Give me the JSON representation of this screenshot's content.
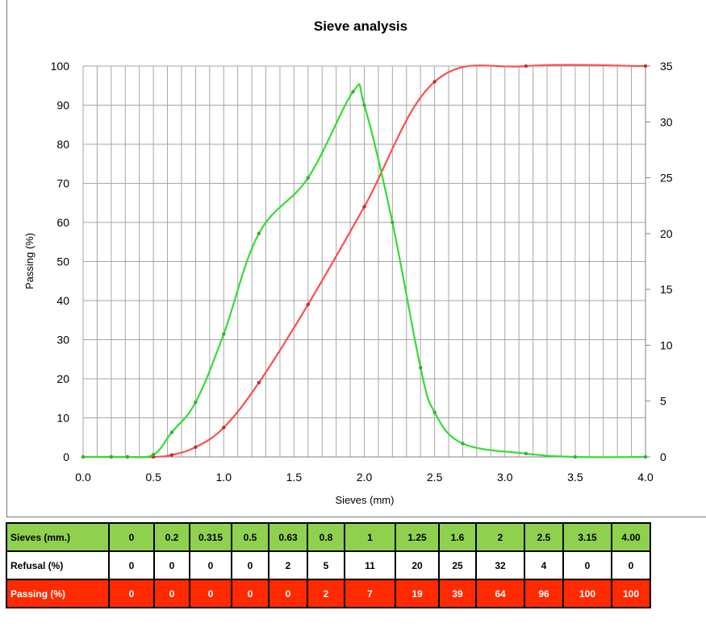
{
  "chart_data": {
    "type": "line",
    "title": "Sieve analysis",
    "xlabel": "Sieves (mm)",
    "ylabel": "Passing (%)",
    "xlim": [
      0,
      4
    ],
    "ylim": [
      0,
      100
    ],
    "y2lim": [
      0,
      35
    ],
    "x_ticks": [
      "0.0",
      "0.5",
      "1.0",
      "1.5",
      "2.0",
      "2.5",
      "3.0",
      "3.5",
      "4.0"
    ],
    "y_ticks": [
      "0",
      "10",
      "20",
      "30",
      "40",
      "50",
      "60",
      "70",
      "80",
      "90",
      "100"
    ],
    "y2_ticks": [
      "0",
      "5",
      "10",
      "15",
      "20",
      "25",
      "30",
      "35"
    ],
    "grid": true,
    "series": [
      {
        "axis": "left",
        "color": "#ff4d4d",
        "x": [
          0,
          0.2,
          0.315,
          0.5,
          0.63,
          0.8,
          1,
          1.25,
          1.6,
          2,
          2.5,
          3.15,
          4.0
        ],
        "y": [
          0,
          0,
          0,
          0,
          0.5,
          2.5,
          7.5,
          19,
          39,
          64,
          96,
          100,
          100
        ]
      },
      {
        "axis": "right",
        "color": "#33dd33",
        "x": [
          0,
          0.2,
          0.315,
          0.5,
          0.63,
          0.8,
          1,
          1.25,
          1.6,
          1.92,
          2,
          2.2,
          2.4,
          2.5,
          2.7,
          3.15,
          3.5,
          4.0
        ],
        "y": [
          0,
          0,
          0,
          0.2,
          2.2,
          4.9,
          11,
          20,
          25,
          32.7,
          31.5,
          21,
          8,
          4,
          1.2,
          0.3,
          0,
          0
        ]
      }
    ]
  },
  "table": {
    "rows": [
      {
        "label": "Sieves (mm.)",
        "values": [
          "0",
          "0.2",
          "0.315",
          "0.5",
          "0.63",
          "0.8",
          "1",
          "1.25",
          "1.6",
          "2",
          "2.5",
          "3.15",
          "4.00"
        ]
      },
      {
        "label": "Refusal (%)",
        "values": [
          "0",
          "0",
          "0",
          "0",
          "2",
          "5",
          "11",
          "20",
          "25",
          "32",
          "4",
          "0",
          "0"
        ]
      },
      {
        "label": "Passing (%)",
        "values": [
          "0",
          "0",
          "0",
          "0",
          "0",
          "2",
          "7",
          "19",
          "39",
          "64",
          "96",
          "100",
          "100"
        ]
      }
    ]
  }
}
